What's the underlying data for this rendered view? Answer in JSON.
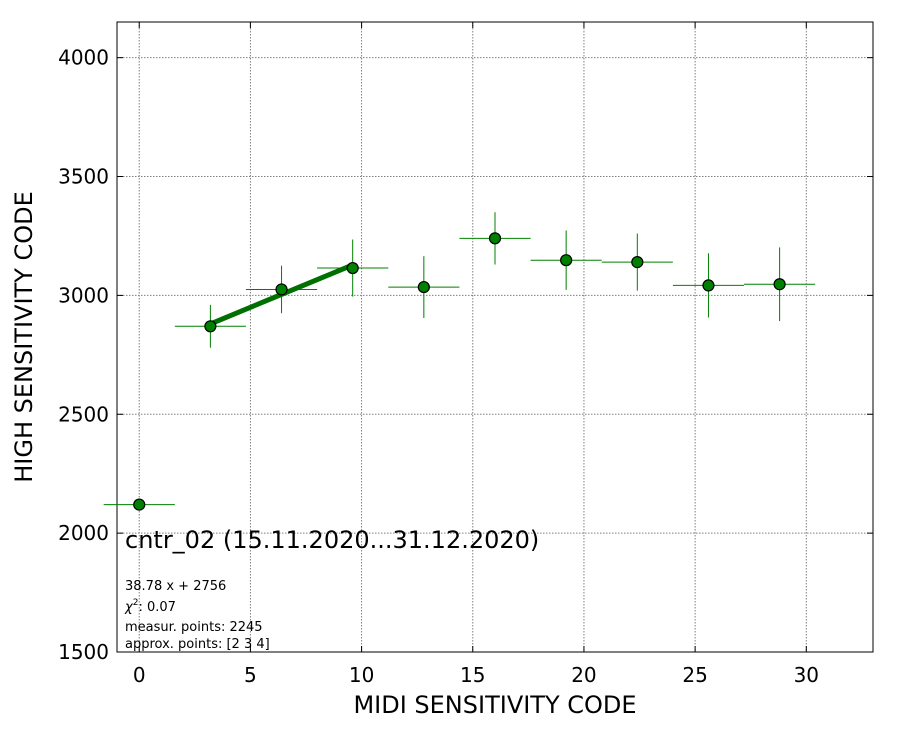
{
  "chart_data": {
    "type": "scatter",
    "xlabel": "MIDI SENSITIVITY CODE",
    "ylabel": "HIGH SENSITIVITY CODE",
    "xlim": [
      -1,
      33
    ],
    "ylim": [
      1500,
      4150
    ],
    "xticks": [
      0,
      5,
      10,
      15,
      20,
      25,
      30
    ],
    "yticks": [
      1500,
      2000,
      2500,
      3000,
      3500,
      4000
    ],
    "grid": true,
    "points": [
      {
        "x": 0.0,
        "y": 2120,
        "xerr": 1.6,
        "yerr": 0
      },
      {
        "x": 3.2,
        "y": 2870,
        "xerr": 1.6,
        "yerr": 90
      },
      {
        "x": 6.4,
        "y": 3025,
        "xerr": 1.6,
        "yerr": 100
      },
      {
        "x": 9.6,
        "y": 3115,
        "xerr": 1.6,
        "yerr": 120
      },
      {
        "x": 12.8,
        "y": 3035,
        "xerr": 1.6,
        "yerr": 130
      },
      {
        "x": 16.0,
        "y": 3240,
        "xerr": 1.6,
        "yerr": 110
      },
      {
        "x": 19.2,
        "y": 3148,
        "xerr": 1.6,
        "yerr": 125
      },
      {
        "x": 22.4,
        "y": 3140,
        "xerr": 1.6,
        "yerr": 120
      },
      {
        "x": 25.6,
        "y": 3042,
        "xerr": 1.6,
        "yerr": 135
      },
      {
        "x": 28.8,
        "y": 3047,
        "xerr": 1.6,
        "yerr": 155
      }
    ],
    "fit": {
      "slope": 38.78,
      "intercept": 2756,
      "x_range": [
        3.2,
        9.6
      ]
    },
    "colors": {
      "marker": "#008000",
      "marker_edge": "#000000",
      "errorbar": "#008000",
      "fit_line": "#007000"
    }
  },
  "annotations": {
    "title": "cntr_02 (15.11.2020...31.12.2020)",
    "fit_equation": "38.78 x + 2756",
    "chi2_label": "χ",
    "chi2_sup": "2",
    "chi2_value": ": 0.07",
    "measur_points": "measur. points: 2245",
    "approx_points": "approx. points: [2 3 4]"
  }
}
